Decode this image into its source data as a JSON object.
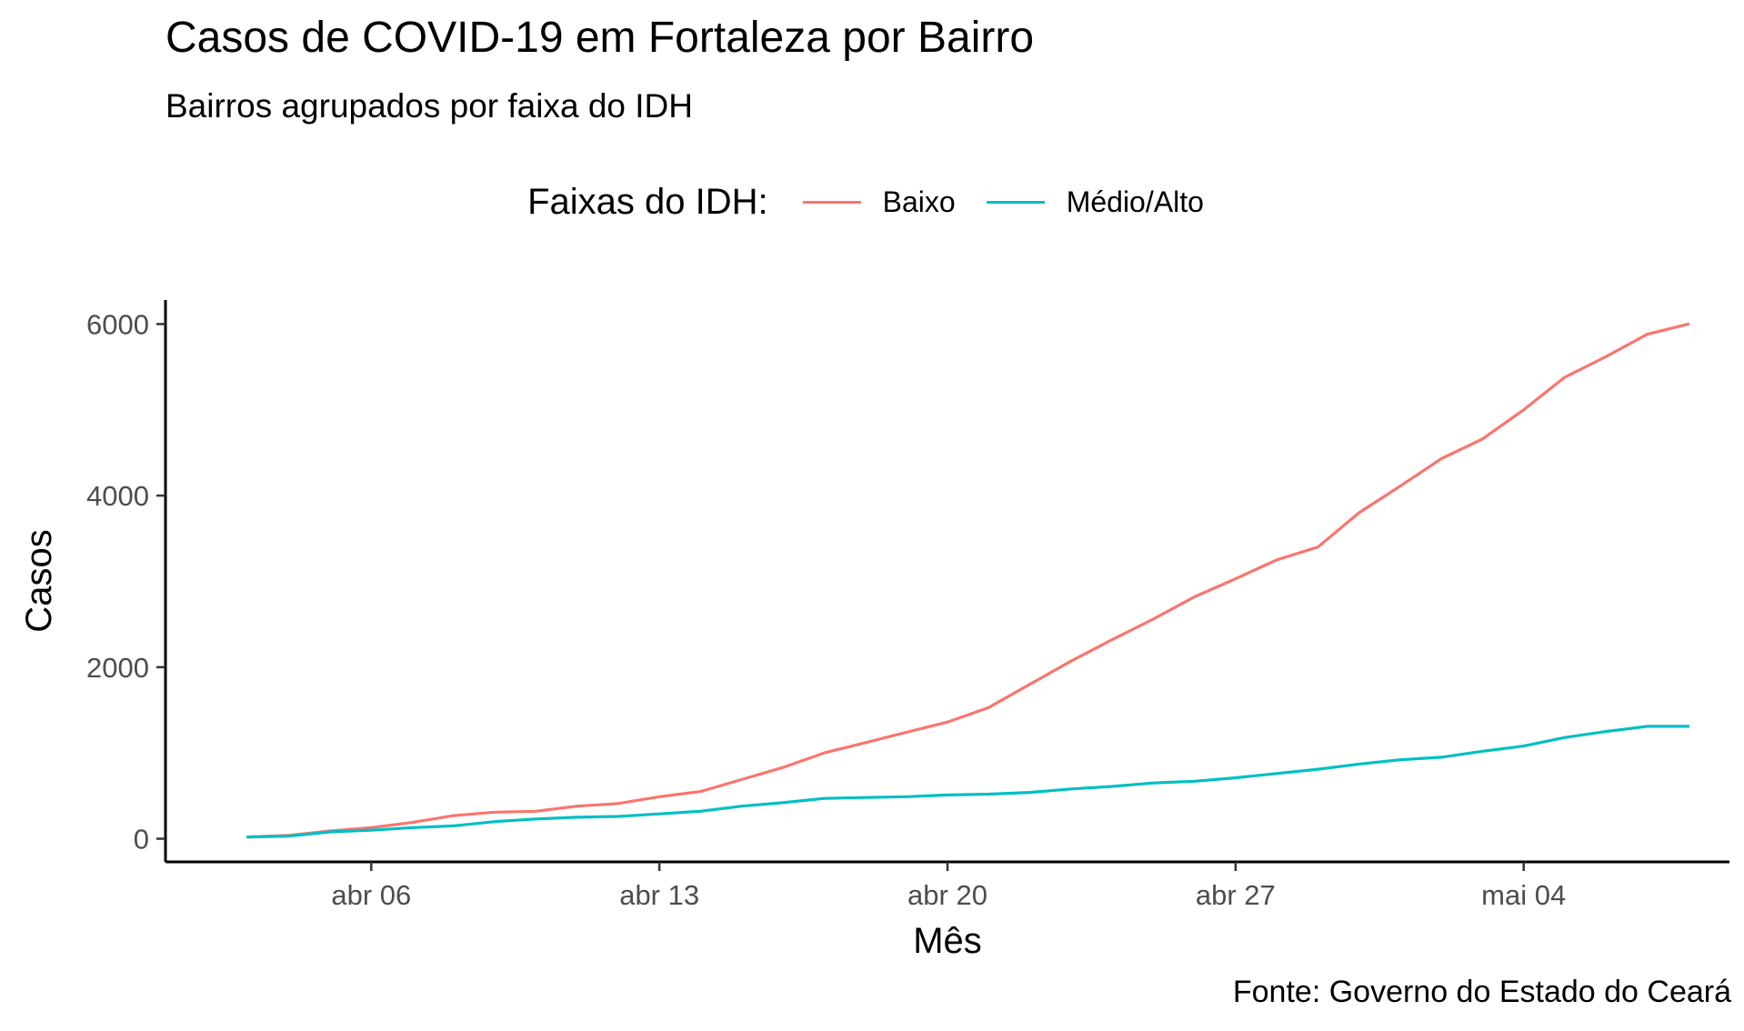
{
  "colors": {
    "baixo": "#F8766D",
    "medio_alto": "#00BFC4",
    "axis": "#000000",
    "tick_text": "#4d4d4d"
  },
  "chart_data": {
    "type": "line",
    "title": "Casos de COVID-19 em Fortaleza por Bairro",
    "subtitle": "Bairros agrupados por faixa do IDH",
    "xlabel": "Mês",
    "ylabel": "Casos",
    "caption": "Fonte: Governo do Estado do Ceará",
    "legend": {
      "title": "Faixas do IDH:",
      "position": "top"
    },
    "grid": false,
    "xlim": [
      "2020-04-01",
      "2020-05-09"
    ],
    "ylim": [
      -270,
      6280
    ],
    "x_ticks": [
      {
        "date": "2020-04-06",
        "label": "abr 06"
      },
      {
        "date": "2020-04-13",
        "label": "abr 13"
      },
      {
        "date": "2020-04-20",
        "label": "abr 20"
      },
      {
        "date": "2020-04-27",
        "label": "abr 27"
      },
      {
        "date": "2020-05-04",
        "label": "mai 04"
      }
    ],
    "y_ticks": [
      0,
      2000,
      4000,
      6000
    ],
    "x": [
      "2020-04-03",
      "2020-04-04",
      "2020-04-05",
      "2020-04-06",
      "2020-04-07",
      "2020-04-08",
      "2020-04-09",
      "2020-04-10",
      "2020-04-11",
      "2020-04-12",
      "2020-04-13",
      "2020-04-14",
      "2020-04-15",
      "2020-04-16",
      "2020-04-17",
      "2020-04-18",
      "2020-04-19",
      "2020-04-20",
      "2020-04-21",
      "2020-04-22",
      "2020-04-23",
      "2020-04-24",
      "2020-04-25",
      "2020-04-26",
      "2020-04-27",
      "2020-04-28",
      "2020-04-29",
      "2020-04-30",
      "2020-05-01",
      "2020-05-02",
      "2020-05-03",
      "2020-05-04",
      "2020-05-05",
      "2020-05-06",
      "2020-05-07",
      "2020-05-08"
    ],
    "series": [
      {
        "name": "Baixo",
        "color": "#F8766D",
        "values": [
          20,
          40,
          90,
          130,
          190,
          270,
          310,
          320,
          380,
          410,
          490,
          550,
          690,
          830,
          1000,
          1120,
          1240,
          1360,
          1530,
          1800,
          2070,
          2320,
          2560,
          2820,
          3030,
          3250,
          3400,
          3800,
          4110,
          4430,
          4660,
          5000,
          5380,
          5620,
          5880,
          6000
        ]
      },
      {
        "name": "Médio/Alto",
        "color": "#00BFC4",
        "values": [
          20,
          30,
          80,
          100,
          130,
          150,
          200,
          230,
          250,
          260,
          290,
          320,
          380,
          420,
          470,
          480,
          490,
          510,
          520,
          540,
          580,
          610,
          650,
          670,
          710,
          760,
          810,
          870,
          920,
          950,
          1020,
          1080,
          1180,
          1250,
          1310,
          1310
        ]
      }
    ]
  }
}
